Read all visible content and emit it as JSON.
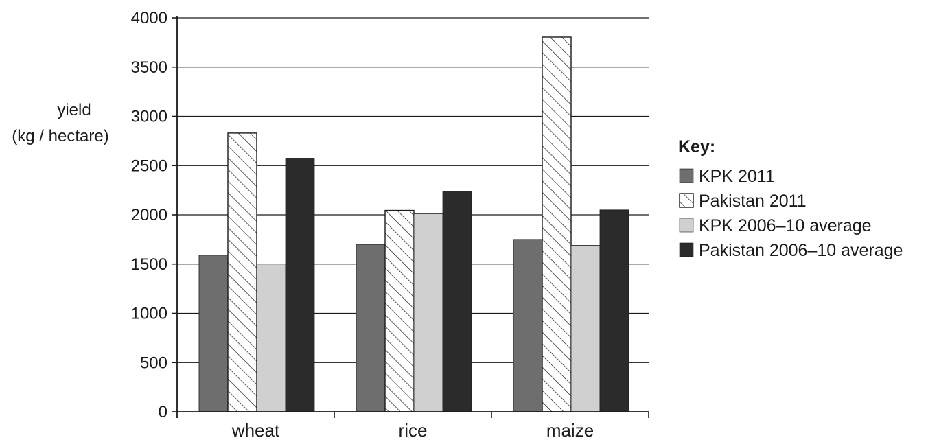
{
  "chart_data": {
    "type": "bar",
    "ylabel_line1": "yield",
    "ylabel_line2": "(kg / hectare)",
    "categories": [
      "wheat",
      "rice",
      "maize"
    ],
    "ylim": [
      0,
      4000
    ],
    "yticks": [
      0,
      500,
      1000,
      1500,
      2000,
      2500,
      3000,
      3500,
      4000
    ],
    "grid": true,
    "legend": {
      "title": "Key:",
      "placement": "right"
    },
    "series": [
      {
        "name": "KPK 2011",
        "color": "#6e6e6e",
        "pattern": "solid",
        "values": [
          1590,
          1700,
          1750
        ]
      },
      {
        "name": "Pakistan 2011",
        "color": "#ffffff",
        "pattern": "hatched",
        "values": [
          2830,
          2045,
          3805
        ]
      },
      {
        "name": "KPK 2006–10 average",
        "color": "#d0d0d0",
        "pattern": "solid",
        "values": [
          1500,
          2010,
          1690
        ]
      },
      {
        "name": "Pakistan 2006–10 average",
        "color": "#2b2b2b",
        "pattern": "solid",
        "values": [
          2575,
          2240,
          2050
        ]
      }
    ]
  }
}
